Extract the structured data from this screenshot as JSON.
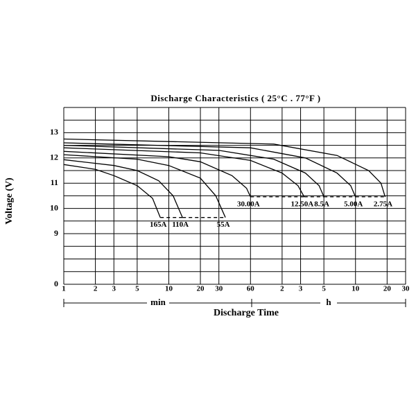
{
  "chart_data": {
    "type": "line",
    "title": "Discharge Characteristics ( 25°C . 77°F )",
    "x_label": "Discharge Time",
    "y_label": "Voltage (V)",
    "x_unit_labels": [
      "min",
      "h"
    ],
    "x_log": true,
    "xlim": [
      1,
      1800
    ],
    "xticks": [
      1,
      2,
      3,
      5,
      10,
      20,
      30,
      60,
      {
        "value": 120,
        "label": "2"
      },
      {
        "value": 180,
        "label": "3"
      },
      {
        "value": 300,
        "label": "5"
      },
      {
        "value": 600,
        "label": "10"
      },
      {
        "value": 1200,
        "label": "20"
      },
      {
        "value": 1800,
        "label": "30"
      }
    ],
    "ylim": [
      0,
      14
    ],
    "y_compressed_range": [
      0,
      9
    ],
    "yticks": [
      0,
      9,
      10,
      11,
      12,
      13
    ],
    "y_minor_ticks": [
      9.5,
      10.5,
      11.5,
      12.5,
      13.5
    ],
    "grid": true,
    "color": "#000000",
    "series": [
      {
        "name": "165A",
        "x": [
          1,
          2,
          3,
          5,
          7,
          8.3
        ],
        "values": [
          11.74,
          11.55,
          11.3,
          10.9,
          10.4,
          9.64
        ]
      },
      {
        "name": "110A",
        "x": [
          1,
          3,
          5,
          8,
          11,
          13.5
        ],
        "values": [
          11.93,
          11.7,
          11.5,
          11.1,
          10.5,
          9.64
        ]
      },
      {
        "name": "55A",
        "x": [
          1,
          5,
          10,
          20,
          28,
          34.6
        ],
        "values": [
          12.13,
          11.95,
          11.7,
          11.2,
          10.5,
          9.64
        ]
      },
      {
        "name": "30.00A",
        "x": [
          1,
          10,
          20,
          40,
          55,
          60
        ],
        "values": [
          12.26,
          12.05,
          11.85,
          11.3,
          10.8,
          10.46
        ]
      },
      {
        "name": "12.50A",
        "x": [
          1,
          20,
          60,
          120,
          170,
          195
        ],
        "values": [
          12.4,
          12.2,
          11.9,
          11.4,
          10.9,
          10.46
        ]
      },
      {
        "name": "8.5A",
        "x": [
          1,
          30,
          100,
          200,
          270,
          300
        ],
        "values": [
          12.5,
          12.3,
          11.95,
          11.4,
          10.9,
          10.46
        ]
      },
      {
        "name": "5.00A",
        "x": [
          1,
          60,
          200,
          400,
          540,
          600
        ],
        "values": [
          12.6,
          12.4,
          12.0,
          11.4,
          10.9,
          10.46
        ]
      },
      {
        "name": "2.75A",
        "x": [
          1,
          100,
          400,
          800,
          1050,
          1150
        ],
        "values": [
          12.75,
          12.55,
          12.1,
          11.5,
          11.0,
          10.46
        ]
      }
    ]
  }
}
